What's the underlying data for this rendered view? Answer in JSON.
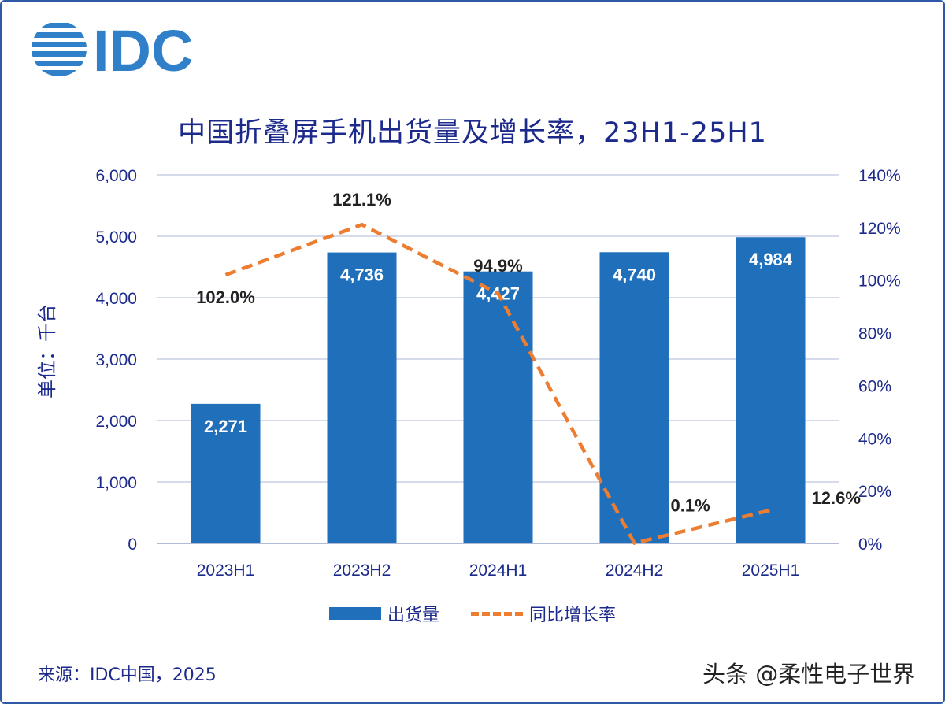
{
  "logo": {
    "text": "IDC",
    "color": "#2f7fc9"
  },
  "chart_data": {
    "type": "bar",
    "title": "中国折叠屏手机出货量及增长率，23H1-25H1",
    "categories": [
      "2023H1",
      "2023H2",
      "2024H1",
      "2024H2",
      "2025H1"
    ],
    "ylabel": "单位：千台",
    "ylim": [
      0,
      6000
    ],
    "yticks": [
      "0",
      "1,000",
      "2,000",
      "3,000",
      "4,000",
      "5,000",
      "6,000"
    ],
    "y2lim": [
      0,
      140
    ],
    "y2ticks": [
      "0%",
      "20%",
      "40%",
      "60%",
      "80%",
      "100%",
      "120%",
      "140%"
    ],
    "grid": true,
    "legend_position": "bottom",
    "series": [
      {
        "name": "出货量",
        "type": "bar",
        "axis": "left",
        "color": "#1f6fba",
        "values": [
          2271,
          4736,
          4427,
          4740,
          4984
        ],
        "labels": [
          "2,271",
          "4,736",
          "4,427",
          "4,740",
          "4,984"
        ]
      },
      {
        "name": "同比增长率",
        "type": "line",
        "style": "dashed",
        "axis": "right",
        "color": "#ec7d31",
        "values": [
          102.0,
          121.1,
          94.9,
          0.1,
          12.6
        ],
        "labels": [
          "102.0%",
          "121.1%",
          "94.9%",
          "0.1%",
          "12.6%"
        ]
      }
    ]
  },
  "legend": {
    "bar_label": "出货量",
    "line_label": "同比增长率"
  },
  "source": "来源：IDC中国，2025",
  "watermark": "头条 @柔性电子世界"
}
